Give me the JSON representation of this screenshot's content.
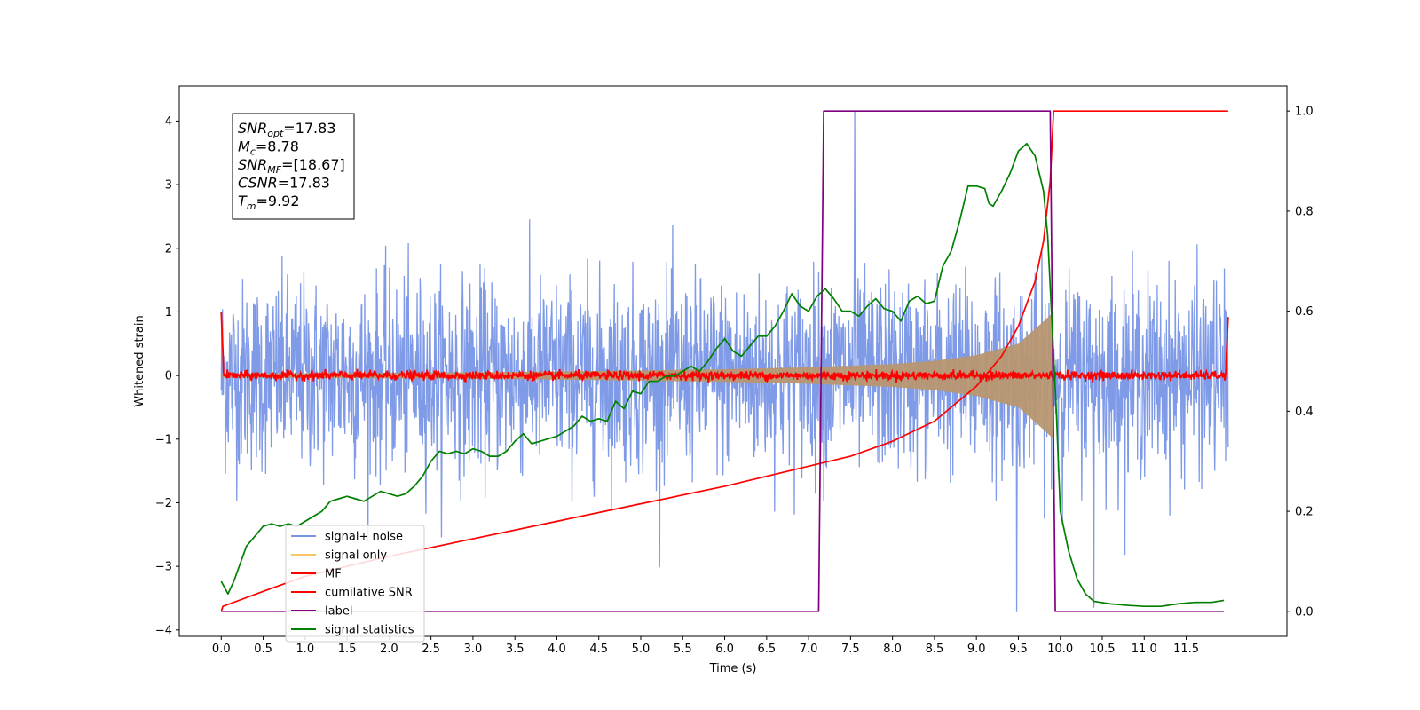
{
  "chart_data": {
    "type": "line",
    "title": "",
    "xlabel": "Time (s)",
    "ylabel": "Whitened strain",
    "y2label": "",
    "xlim": [
      -0.5,
      12.7
    ],
    "ylim": [
      -4.1,
      4.55
    ],
    "y2lim": [
      -0.05,
      1.05
    ],
    "xticks": [
      "0.0",
      "0.5",
      "1.0",
      "1.5",
      "2.0",
      "2.5",
      "3.0",
      "3.5",
      "4.0",
      "4.5",
      "5.0",
      "5.5",
      "6.0",
      "6.5",
      "7.0",
      "7.5",
      "8.0",
      "8.5",
      "9.0",
      "9.5",
      "10.0",
      "10.5",
      "11.0",
      "11.5"
    ],
    "yticks": [
      "−4",
      "−3",
      "−2",
      "−1",
      "0",
      "1",
      "2",
      "3",
      "4"
    ],
    "y2ticks": [
      "0.0",
      "0.2",
      "0.4",
      "0.6",
      "0.8",
      "1.0"
    ],
    "grid": false,
    "legend_position": "lower-left",
    "annotation": [
      {
        "sym": "SNR",
        "sub": "opt",
        "value": "=17.83"
      },
      {
        "sym": "M",
        "sub": "c",
        "value": "=8.78"
      },
      {
        "sym": "SNR",
        "sub": "MF",
        "value": "=[18.67]"
      },
      {
        "sym": "CSNR",
        "sub": "",
        "value": "=17.83"
      },
      {
        "sym": "T",
        "sub": "m",
        "value": "=9.92"
      }
    ],
    "series": [
      {
        "name": "signal+ noise",
        "color": "#7895e6",
        "axis": "left",
        "kind": "noise",
        "std": 0.75,
        "x_range": [
          0,
          12
        ],
        "spike_max": 4.15,
        "spike_min": -3.72
      },
      {
        "name": "signal only",
        "color": "#f5c566",
        "axis": "left",
        "kind": "chirp",
        "x_range": [
          0,
          9.92
        ],
        "amplitude_points": {
          "x": [
            0,
            3,
            5,
            6,
            7,
            8,
            8.5,
            9,
            9.5,
            9.8,
            9.92
          ],
          "y": [
            0.03,
            0.05,
            0.08,
            0.1,
            0.13,
            0.18,
            0.23,
            0.32,
            0.5,
            0.85,
            1.0
          ]
        }
      },
      {
        "name": "MF",
        "color": "#ff0000",
        "axis": "left",
        "kind": "mf",
        "x_range": [
          0,
          12
        ],
        "baseline": 0.0,
        "edge_peak": 1.0,
        "edge_peak_right": 0.92
      },
      {
        "name": "cumilative SNR",
        "color": "#ff0000",
        "axis": "right",
        "x": [
          0,
          0.02,
          0.5,
          1,
          2,
          3,
          4,
          5,
          6,
          7,
          7.5,
          8,
          8.5,
          9,
          9.3,
          9.5,
          9.7,
          9.8,
          9.88,
          9.92,
          12
        ],
        "y": [
          0.0,
          0.01,
          0.04,
          0.07,
          0.11,
          0.145,
          0.18,
          0.215,
          0.25,
          0.29,
          0.31,
          0.34,
          0.38,
          0.45,
          0.51,
          0.57,
          0.66,
          0.74,
          0.86,
          1.0,
          1.0
        ]
      },
      {
        "name": "label",
        "color": "#800080",
        "axis": "right",
        "x": [
          0,
          7.12,
          7.18,
          9.88,
          9.94,
          11.95
        ],
        "y": [
          0,
          0,
          1,
          1,
          0,
          0
        ]
      },
      {
        "name": "signal statistics",
        "color": "#008000",
        "axis": "right",
        "x": [
          0,
          0.08,
          0.15,
          0.3,
          0.4,
          0.5,
          0.6,
          0.7,
          0.8,
          0.9,
          1.0,
          1.1,
          1.2,
          1.3,
          1.4,
          1.5,
          1.6,
          1.7,
          1.8,
          1.9,
          2.0,
          2.1,
          2.2,
          2.3,
          2.4,
          2.5,
          2.6,
          2.7,
          2.8,
          2.9,
          3.0,
          3.1,
          3.2,
          3.3,
          3.4,
          3.5,
          3.6,
          3.7,
          3.8,
          3.9,
          4.0,
          4.1,
          4.2,
          4.3,
          4.4,
          4.5,
          4.6,
          4.7,
          4.8,
          4.9,
          5.0,
          5.1,
          5.2,
          5.3,
          5.4,
          5.5,
          5.6,
          5.7,
          5.8,
          5.9,
          6.0,
          6.1,
          6.2,
          6.3,
          6.4,
          6.5,
          6.6,
          6.7,
          6.8,
          6.9,
          7.0,
          7.1,
          7.2,
          7.3,
          7.4,
          7.5,
          7.6,
          7.7,
          7.8,
          7.9,
          8.0,
          8.1,
          8.2,
          8.3,
          8.4,
          8.5,
          8.6,
          8.7,
          8.8,
          8.9,
          9.0,
          9.1,
          9.15,
          9.2,
          9.3,
          9.4,
          9.5,
          9.6,
          9.7,
          9.8,
          9.85,
          9.9,
          9.95,
          10.0,
          10.1,
          10.2,
          10.3,
          10.4,
          10.6,
          10.8,
          11.0,
          11.2,
          11.4,
          11.6,
          11.8,
          11.95
        ],
        "y": [
          0.06,
          0.035,
          0.06,
          0.13,
          0.15,
          0.17,
          0.175,
          0.17,
          0.175,
          0.17,
          0.18,
          0.19,
          0.2,
          0.22,
          0.225,
          0.23,
          0.225,
          0.22,
          0.23,
          0.24,
          0.235,
          0.23,
          0.235,
          0.25,
          0.27,
          0.3,
          0.32,
          0.315,
          0.32,
          0.315,
          0.325,
          0.32,
          0.31,
          0.31,
          0.32,
          0.34,
          0.355,
          0.335,
          0.34,
          0.345,
          0.35,
          0.36,
          0.37,
          0.39,
          0.38,
          0.385,
          0.38,
          0.42,
          0.405,
          0.44,
          0.435,
          0.46,
          0.46,
          0.47,
          0.47,
          0.48,
          0.49,
          0.48,
          0.5,
          0.525,
          0.545,
          0.52,
          0.51,
          0.53,
          0.55,
          0.55,
          0.57,
          0.6,
          0.635,
          0.61,
          0.6,
          0.63,
          0.645,
          0.625,
          0.6,
          0.6,
          0.59,
          0.61,
          0.625,
          0.605,
          0.6,
          0.58,
          0.62,
          0.63,
          0.615,
          0.62,
          0.69,
          0.72,
          0.78,
          0.85,
          0.85,
          0.845,
          0.815,
          0.81,
          0.84,
          0.875,
          0.92,
          0.935,
          0.91,
          0.84,
          0.75,
          0.58,
          0.41,
          0.2,
          0.12,
          0.065,
          0.035,
          0.02,
          0.015,
          0.012,
          0.01,
          0.01,
          0.015,
          0.018,
          0.018,
          0.022
        ]
      }
    ]
  }
}
